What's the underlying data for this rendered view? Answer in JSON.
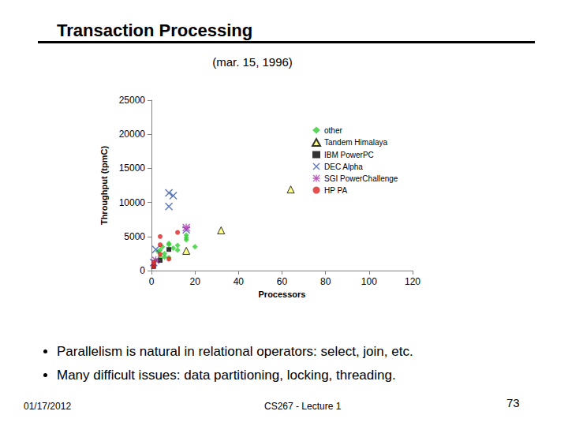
{
  "slide": {
    "title": "Transaction Processing",
    "subtitle": "(mar. 15, 1996)",
    "bullets": [
      "Parallelism is natural in relational operators: select, join, etc.",
      "Many difficult issues: data partitioning, locking, threading."
    ],
    "footer": {
      "date": "01/17/2012",
      "course": "CS267 - Lecture 1",
      "page": "73"
    }
  },
  "chart_data": {
    "type": "scatter",
    "x_label": "Processors",
    "y_label": "Throughput (tpmC)",
    "xlim": [
      0,
      120
    ],
    "xticks": [
      0,
      20,
      40,
      60,
      80,
      100,
      120
    ],
    "ylim": [
      0,
      25000
    ],
    "yticks": [
      0,
      5000,
      10000,
      15000,
      20000,
      25000
    ],
    "grid": false,
    "legend": "right",
    "series": [
      {
        "name": "other",
        "color": "#33cc33",
        "marker": "diamond",
        "x": [
          4,
          4,
          5,
          6,
          8,
          8,
          10,
          12,
          16,
          16,
          16,
          20,
          8,
          6,
          2,
          3,
          12
        ],
        "values": [
          2000,
          3000,
          3500,
          2500,
          3800,
          4000,
          3300,
          3700,
          4500,
          5200,
          4800,
          3500,
          1900,
          2000,
          1500,
          2800,
          3000
        ]
      },
      {
        "name": "Tandem Himalaya",
        "color": "#ffff66",
        "marker": "triangle",
        "x": [
          64,
          32,
          16
        ],
        "values": [
          11900,
          5900,
          2900
        ]
      },
      {
        "name": "IBM PowerPC",
        "color": "#000000",
        "marker": "square",
        "x": [
          8,
          4,
          1
        ],
        "values": [
          3100,
          1500,
          600
        ]
      },
      {
        "name": "DEC Alpha",
        "color": "#3355aa",
        "marker": "x",
        "x": [
          8,
          10,
          8,
          16,
          2,
          1
        ],
        "values": [
          11400,
          11000,
          9400,
          6000,
          3100,
          1200
        ]
      },
      {
        "name": "SGI PowerChallenge",
        "color": "#aa33aa",
        "marker": "asterisk",
        "x": [
          16,
          2
        ],
        "values": [
          6300,
          1500
        ]
      },
      {
        "name": "HP PA",
        "color": "#dd2222",
        "marker": "circle",
        "x": [
          4,
          12,
          4,
          4,
          1,
          1,
          8
        ],
        "values": [
          5000,
          5600,
          3800,
          2400,
          1200,
          600,
          1700
        ]
      }
    ]
  }
}
